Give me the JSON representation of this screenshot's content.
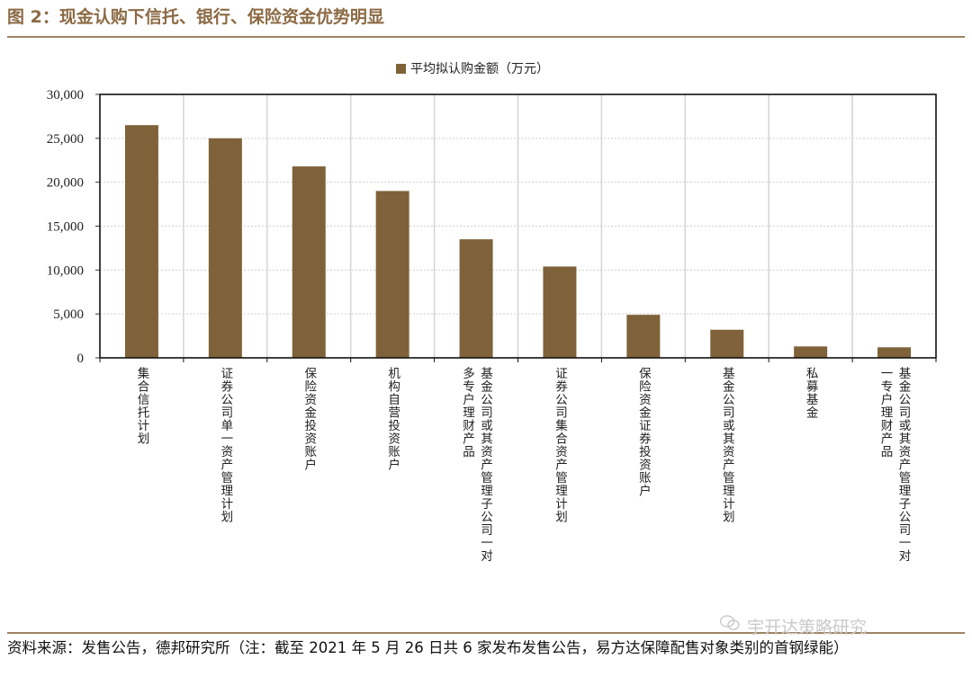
{
  "figure": {
    "title": "图 2：现金认购下信托、银行、保险资金优势明显",
    "source": "资料来源：发售公告，德邦研究所（注：截至 2021 年 5 月 26 日共 6 家发布发售公告，易方达保障配售对象类别的首钢绿能）",
    "watermark": "宇开达策略研究"
  },
  "chart_data": {
    "type": "bar",
    "title": "",
    "legend": [
      "平均拟认购金额（万元）"
    ],
    "legend_position": "top-center",
    "xlabel": "",
    "ylabel": "",
    "ylim": [
      0,
      30000
    ],
    "yticks": [
      "0",
      "5,000",
      "10,000",
      "15,000",
      "20,000",
      "25,000",
      "30,000"
    ],
    "grid": true,
    "bar_color": "#7f6239",
    "categories": [
      "集合信托计划",
      "证券公司单一资产管理计划",
      "保险资金投资账户",
      "机构自营投资账户",
      "基金公司或其资产管理子公司一对多专户理财产品",
      "证券公司集合资产管理计划",
      "保险资金证券投资账户",
      "基金公司或其资产管理计划",
      "私募基金",
      "基金公司或其资产管理子公司一对一专户理财产品"
    ],
    "category_lines": [
      [
        "集合信托计划"
      ],
      [
        "证券公司单一资产管理计划"
      ],
      [
        "保险资金投资账户"
      ],
      [
        "机构自营投资账户"
      ],
      [
        "基金公司或其资产管理子公司一对",
        "多专户理财产品"
      ],
      [
        "证券公司集合资产管理计划"
      ],
      [
        "保险资金证券投资账户"
      ],
      [
        "基金公司或其资产管理计划"
      ],
      [
        "私募基金"
      ],
      [
        "基金公司或其资产管理子公司一对",
        "一专户理财产品"
      ]
    ],
    "series": [
      {
        "name": "平均拟认购金额（万元）",
        "values": [
          26500,
          25000,
          21800,
          19000,
          13500,
          10400,
          4900,
          3200,
          1300,
          1200
        ]
      }
    ]
  }
}
